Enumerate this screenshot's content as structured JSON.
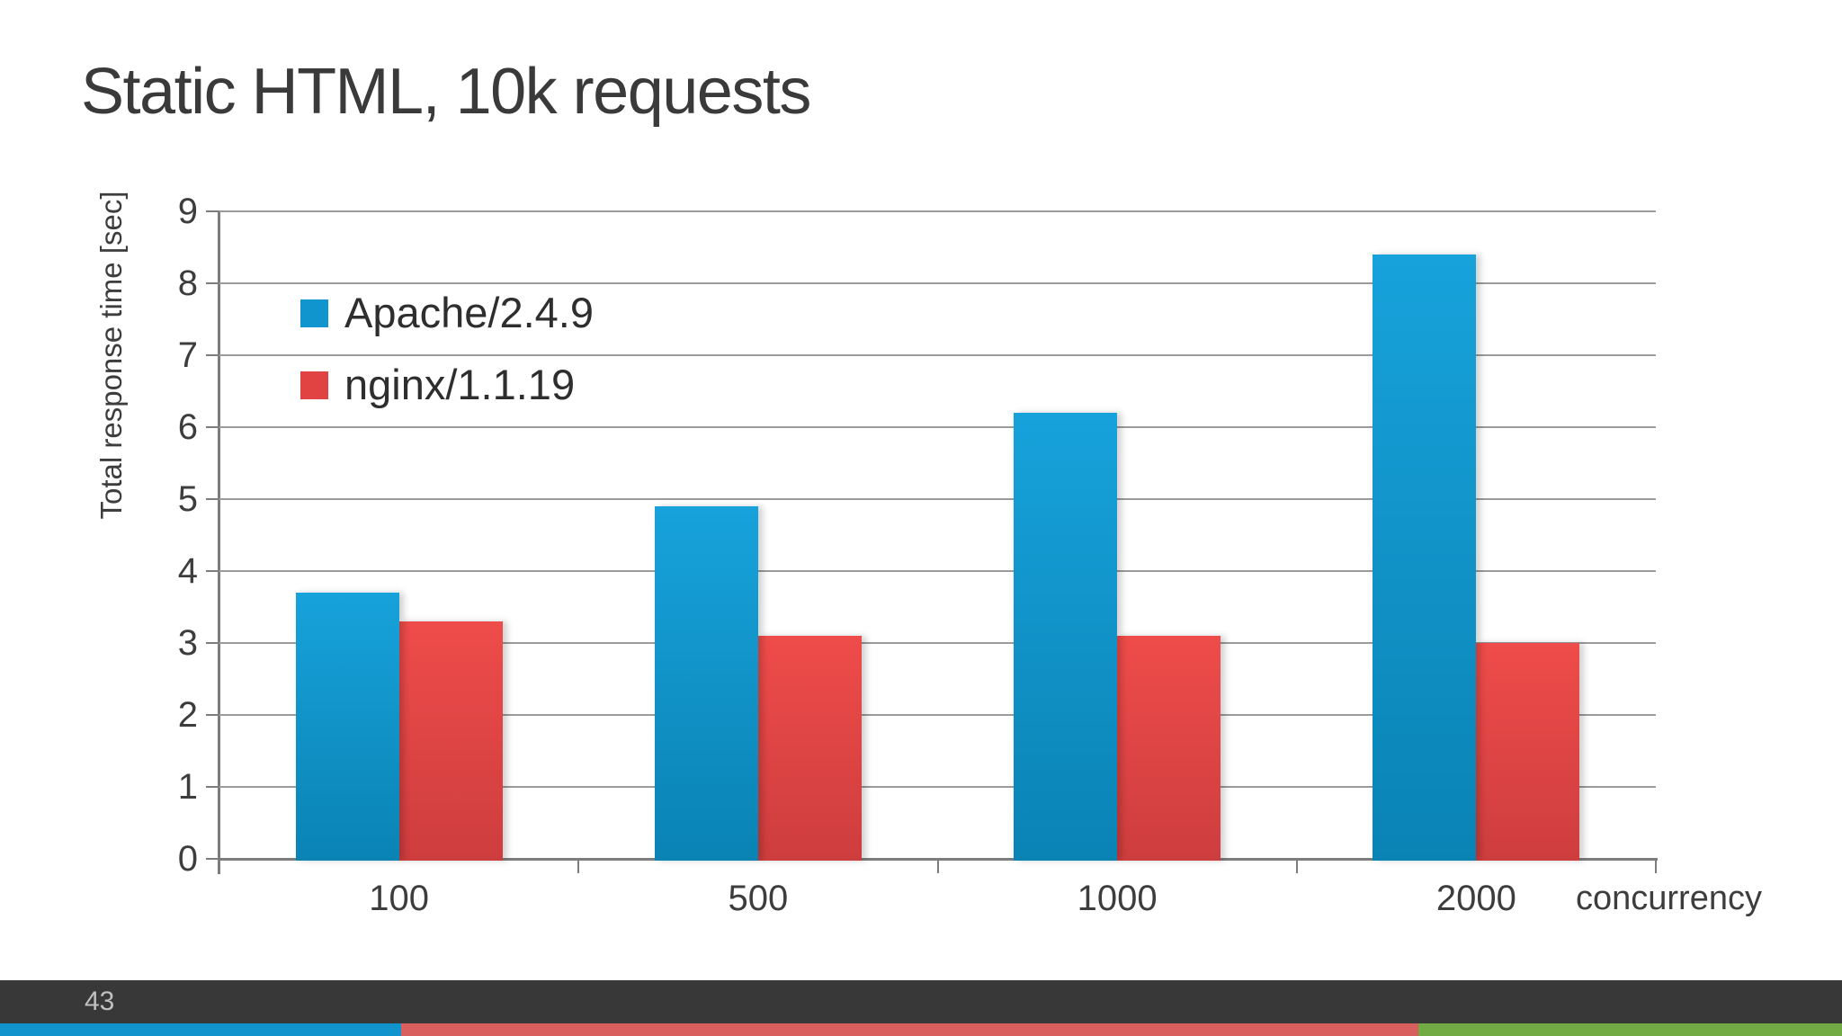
{
  "slide": {
    "title": "Static HTML, 10k requests",
    "page_number": "43"
  },
  "chart_data": {
    "type": "bar",
    "title": "Static HTML, 10k requests",
    "categories": [
      "100",
      "500",
      "1000",
      "2000"
    ],
    "series": [
      {
        "name": "Apache/2.4.9",
        "values": [
          3.7,
          4.9,
          6.2,
          8.4
        ],
        "color_top": "#17a2db",
        "color_bottom": "#0a83b4",
        "legend_color": "#1095cf"
      },
      {
        "name": "nginx/1.1.19",
        "values": [
          3.3,
          3.1,
          3.1,
          3.0
        ],
        "color_top": "#ee4c4a",
        "color_bottom": "#ce3d3e",
        "legend_color": "#e14343"
      }
    ],
    "xlabel": "concurrency",
    "ylabel": "Total response time [sec]",
    "ylim": [
      0,
      9
    ],
    "yticks": [
      0,
      1,
      2,
      3,
      4,
      5,
      6,
      7,
      8,
      9
    ],
    "grid": true,
    "legend_position": "inside-top-left"
  },
  "colors": {
    "title_text": "#3a3a3a",
    "axis": "#7d7d7d",
    "gridline": "#9b9b9b",
    "tick_text": "#3d3d3d",
    "footer_bg": "#383838",
    "footer_text": "#c0c0c0"
  },
  "accent_strip": {
    "segments": [
      {
        "color": "#1193cd",
        "width_pct": 21.8
      },
      {
        "color": "#d95f5e",
        "width_pct": 55.2
      },
      {
        "color": "#72ab44",
        "width_pct": 23.0
      }
    ]
  }
}
